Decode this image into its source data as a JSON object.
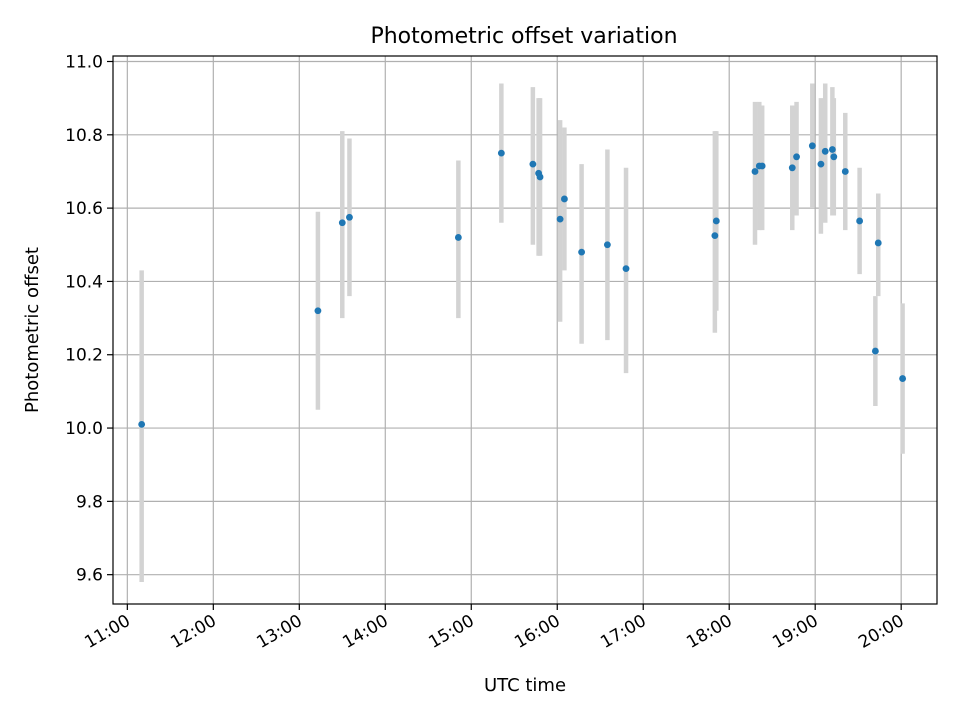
{
  "chart_data": {
    "type": "scatter",
    "title": "Photometric offset variation",
    "xlabel": "UTC time",
    "ylabel": "Photometric offset",
    "x_unit": "UTC time of day",
    "xlim": [
      "10:50",
      "20:25"
    ],
    "ylim": [
      9.52,
      11.015
    ],
    "x_ticks": [
      "11:00",
      "12:00",
      "13:00",
      "14:00",
      "15:00",
      "16:00",
      "17:00",
      "18:00",
      "19:00",
      "20:00"
    ],
    "y_ticks": [
      "9.6",
      "9.8",
      "10.0",
      "10.2",
      "10.4",
      "10.6",
      "10.8",
      "11.0"
    ],
    "grid": true,
    "legend": "none",
    "colors": {
      "point": "#1f77b4",
      "errorbar": "#d3d3d3",
      "grid": "#b0b0b0"
    },
    "series": [
      {
        "points": [
          {
            "x": "11:10",
            "y": 10.01,
            "err_low": 9.58,
            "err_high": 10.43
          },
          {
            "x": "13:13",
            "y": 10.32,
            "err_low": 10.05,
            "err_high": 10.59
          },
          {
            "x": "13:30",
            "y": 10.56,
            "err_low": 10.3,
            "err_high": 10.81
          },
          {
            "x": "13:35",
            "y": 10.575,
            "err_low": 10.36,
            "err_high": 10.79
          },
          {
            "x": "14:51",
            "y": 10.52,
            "err_low": 10.3,
            "err_high": 10.73
          },
          {
            "x": "15:21",
            "y": 10.75,
            "err_low": 10.56,
            "err_high": 10.94
          },
          {
            "x": "15:43",
            "y": 10.72,
            "err_low": 10.5,
            "err_high": 10.93
          },
          {
            "x": "15:47",
            "y": 10.695,
            "err_low": 10.47,
            "err_high": 10.9
          },
          {
            "x": "15:48",
            "y": 10.685,
            "err_low": 10.47,
            "err_high": 10.9
          },
          {
            "x": "16:02",
            "y": 10.57,
            "err_low": 10.29,
            "err_high": 10.84
          },
          {
            "x": "16:05",
            "y": 10.625,
            "err_low": 10.43,
            "err_high": 10.82
          },
          {
            "x": "16:17",
            "y": 10.48,
            "err_low": 10.23,
            "err_high": 10.72
          },
          {
            "x": "16:35",
            "y": 10.5,
            "err_low": 10.24,
            "err_high": 10.76
          },
          {
            "x": "16:48",
            "y": 10.435,
            "err_low": 10.15,
            "err_high": 10.71
          },
          {
            "x": "17:50",
            "y": 10.525,
            "err_low": 10.26,
            "err_high": 10.81
          },
          {
            "x": "17:51",
            "y": 10.565,
            "err_low": 10.32,
            "err_high": 10.81
          },
          {
            "x": "18:18",
            "y": 10.7,
            "err_low": 10.5,
            "err_high": 10.89
          },
          {
            "x": "18:21",
            "y": 10.715,
            "err_low": 10.54,
            "err_high": 10.89
          },
          {
            "x": "18:23",
            "y": 10.715,
            "err_low": 10.54,
            "err_high": 10.88
          },
          {
            "x": "18:44",
            "y": 10.71,
            "err_low": 10.54,
            "err_high": 10.88
          },
          {
            "x": "18:47",
            "y": 10.74,
            "err_low": 10.58,
            "err_high": 10.89
          },
          {
            "x": "18:58",
            "y": 10.77,
            "err_low": 10.6,
            "err_high": 10.94
          },
          {
            "x": "19:04",
            "y": 10.72,
            "err_low": 10.53,
            "err_high": 10.9
          },
          {
            "x": "19:07",
            "y": 10.755,
            "err_low": 10.56,
            "err_high": 10.94
          },
          {
            "x": "19:12",
            "y": 10.76,
            "err_low": 10.58,
            "err_high": 10.93
          },
          {
            "x": "19:13",
            "y": 10.74,
            "err_low": 10.58,
            "err_high": 10.9
          },
          {
            "x": "19:21",
            "y": 10.7,
            "err_low": 10.54,
            "err_high": 10.86
          },
          {
            "x": "19:31",
            "y": 10.565,
            "err_low": 10.42,
            "err_high": 10.71
          },
          {
            "x": "19:42",
            "y": 10.21,
            "err_low": 10.06,
            "err_high": 10.36
          },
          {
            "x": "19:44",
            "y": 10.505,
            "err_low": 10.36,
            "err_high": 10.64
          },
          {
            "x": "20:01",
            "y": 10.135,
            "err_low": 9.93,
            "err_high": 10.34
          }
        ]
      }
    ]
  }
}
